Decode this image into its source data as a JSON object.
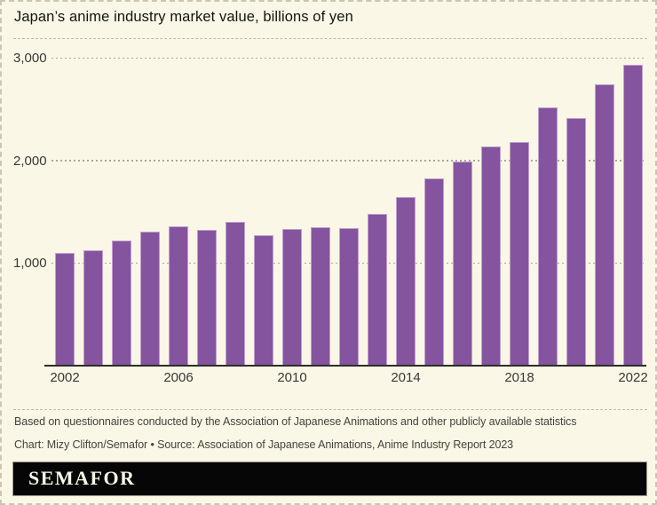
{
  "header": {
    "title": "Japan’s anime industry market value, billions of yen"
  },
  "chart_data": {
    "type": "bar",
    "title": "Japan’s anime industry market value, billions of yen",
    "xlabel": "",
    "ylabel": "billions of yen",
    "x": [
      2002,
      2003,
      2004,
      2005,
      2006,
      2007,
      2008,
      2009,
      2010,
      2011,
      2012,
      2013,
      2014,
      2015,
      2016,
      2017,
      2018,
      2019,
      2020,
      2021,
      2022
    ],
    "values": [
      1100,
      1125,
      1220,
      1305,
      1360,
      1325,
      1400,
      1270,
      1335,
      1345,
      1340,
      1475,
      1640,
      1825,
      1990,
      2135,
      2180,
      2515,
      2415,
      2740,
      2930
    ],
    "ylim": [
      0,
      3000
    ],
    "y_ticks": [
      {
        "value": 1000,
        "label": "1,000"
      },
      {
        "value": 2000,
        "label": "2,000"
      },
      {
        "value": 3000,
        "label": "3,000"
      }
    ],
    "x_ticks": [
      {
        "year": 2002,
        "label": "2002"
      },
      {
        "year": 2006,
        "label": "2006"
      },
      {
        "year": 2010,
        "label": "2010"
      },
      {
        "year": 2014,
        "label": "2014"
      },
      {
        "year": 2018,
        "label": "2018"
      },
      {
        "year": 2022,
        "label": "2022"
      }
    ],
    "grid": "horizontal-dashed",
    "legend": "none",
    "bar_color": "#84549e",
    "bar_edge_color": "#c2a0cf"
  },
  "footer": {
    "note": "Based on questionnaires conducted by the Association of Japanese Animations and other publicly available statistics",
    "credit": "Chart: Mizy Clifton/Semafor • Source: Association of Japanese Animations, Anime Industry Report 2023"
  },
  "brand": {
    "wordmark": "SEMAFOR"
  },
  "colors": {
    "background": "#faf7e7",
    "bar": "#84549e",
    "grid": "#a9a79b",
    "axis_line": "#2e2d28",
    "title_text": "#15140f",
    "tick_text": "#3a3933",
    "footer_text": "#45443c",
    "logo_background": "#060606",
    "logo_text": "#faf7e7"
  }
}
